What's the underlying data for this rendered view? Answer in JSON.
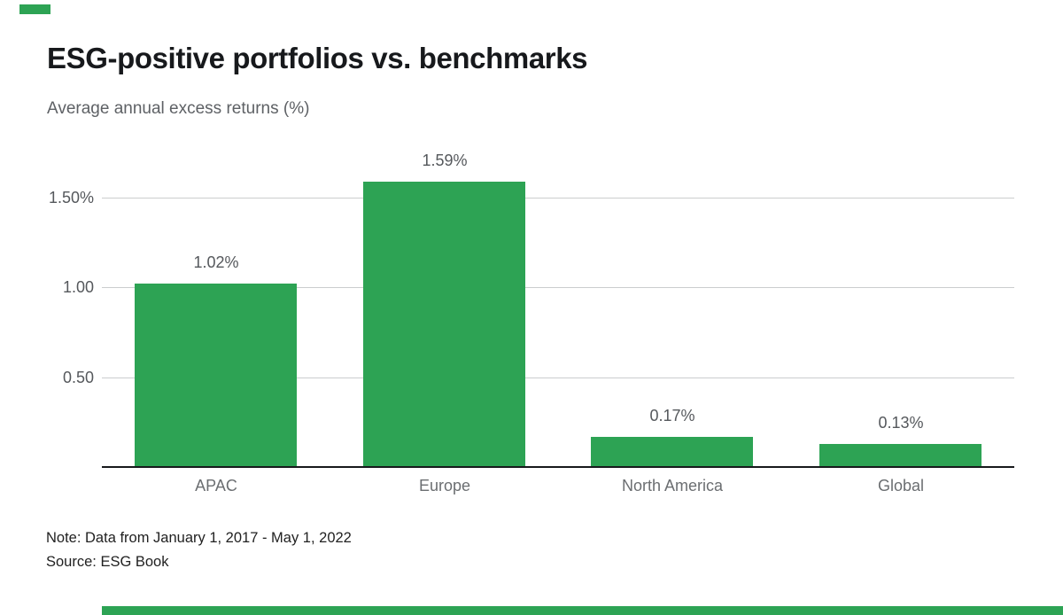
{
  "accent_color": "#2da354",
  "header": {
    "title": "ESG-positive portfolios vs. benchmarks",
    "subtitle": "Average annual excess returns (%)"
  },
  "chart_data": {
    "type": "bar",
    "categories": [
      "APAC",
      "Europe",
      "North America",
      "Global"
    ],
    "values": [
      1.02,
      1.59,
      0.17,
      0.13
    ],
    "value_labels": [
      "1.02%",
      "1.59%",
      "0.17%",
      "0.13%"
    ],
    "title": "ESG-positive portfolios vs. benchmarks",
    "subtitle": "Average annual excess returns (%)",
    "xlabel": "",
    "ylabel": "Average annual excess returns (%)",
    "ylim": [
      0,
      1.8
    ],
    "yticks": [
      {
        "value": 0.5,
        "label": "0.50"
      },
      {
        "value": 1.0,
        "label": "1.00"
      },
      {
        "value": 1.5,
        "label": "1.50%"
      }
    ],
    "bar_color": "#2da354",
    "grid": true,
    "legend": false
  },
  "footer": {
    "note": "Note: Data from January 1, 2017 - May 1, 2022",
    "source": "Source: ESG Book"
  }
}
